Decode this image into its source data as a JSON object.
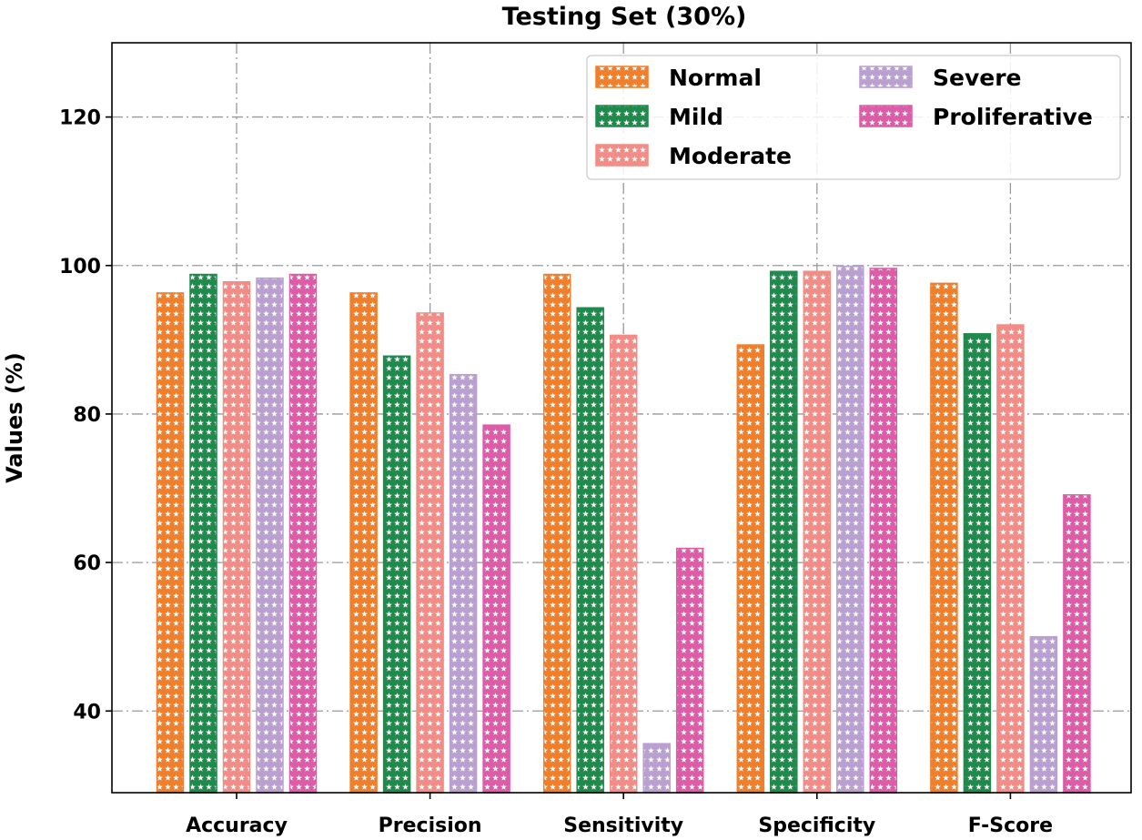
{
  "chart_data": {
    "type": "bar",
    "title": "Testing Set (30%)",
    "xlabel": "",
    "ylabel": "Values (%)",
    "ylim": [
      29,
      130
    ],
    "yticks": [
      40,
      60,
      80,
      100,
      120
    ],
    "grid": true,
    "legend_position": "top-right",
    "legend_columns": 2,
    "categories": [
      "Accuracy",
      "Precision",
      "Sensitivity",
      "Specificity",
      "F-Score"
    ],
    "series": [
      {
        "name": "Normal",
        "color": "#f07f2c",
        "values": [
          96.3,
          96.3,
          98.8,
          89.3,
          97.6
        ]
      },
      {
        "name": "Mild",
        "color": "#1f8a4c",
        "values": [
          98.8,
          87.8,
          94.3,
          99.2,
          90.8
        ]
      },
      {
        "name": "Moderate",
        "color": "#f28c86",
        "values": [
          97.8,
          93.6,
          90.6,
          99.2,
          92.0
        ]
      },
      {
        "name": "Severe",
        "color": "#b9a0d0",
        "values": [
          98.3,
          85.3,
          35.6,
          99.9,
          50.0
        ]
      },
      {
        "name": "Proliferative",
        "color": "#dc5ca8",
        "values": [
          98.8,
          78.5,
          61.9,
          99.6,
          69.1
        ]
      }
    ]
  }
}
